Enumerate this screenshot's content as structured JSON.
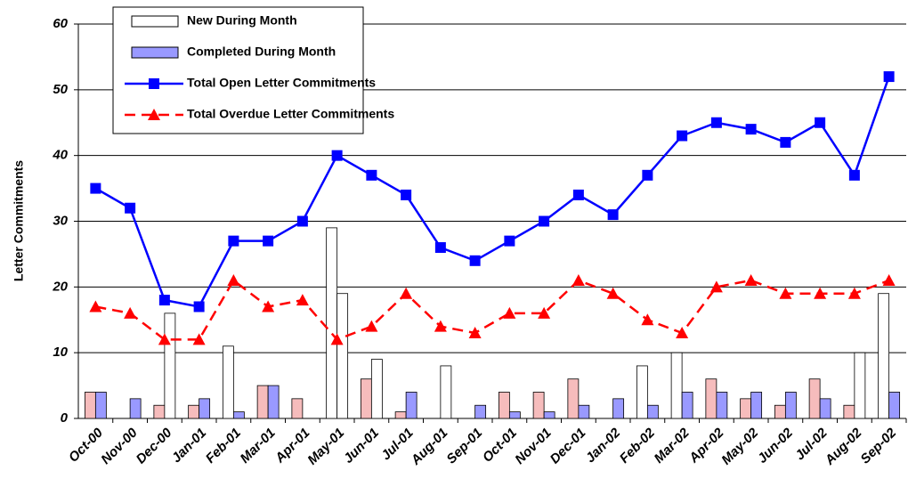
{
  "chart_data": {
    "type": "combo",
    "ylabel": "Letter Commitments",
    "categories": [
      "Oct-00",
      "Nov-00",
      "Dec-00",
      "Jan-01",
      "Feb-01",
      "Mar-01",
      "Apr-01",
      "May-01",
      "Jun-01",
      "Jul-01",
      "Aug-01",
      "Sep-01",
      "Oct-01",
      "Nov-01",
      "Dec-01",
      "Jan-02",
      "Feb-02",
      "Mar-02",
      "Apr-02",
      "May-02",
      "Jun-02",
      "Jul-02",
      "Aug-02",
      "Sep-02"
    ],
    "series": [
      {
        "name": "New During Month",
        "type": "bar",
        "color": "#ffffff",
        "colors": [
          "#f6bcbc",
          "#f6bcbc",
          "#f6bcbc",
          "#f6bcbc",
          "#ffffff",
          "#f6bcbc",
          "#f6bcbc",
          "#ffffff",
          "#f6bcbc",
          "#f6bcbc",
          "#f6bcbc",
          "#f6bcbc",
          "#f6bcbc",
          "#f6bcbc",
          "#f6bcbc",
          "#f6bcbc",
          "#ffffff",
          "#ffffff",
          "#f6bcbc",
          "#f6bcbc",
          "#f6bcbc",
          "#f6bcbc",
          "#f6bcbc",
          "#ffffff"
        ],
        "values": [
          4,
          0,
          2,
          2,
          11,
          5,
          3,
          29,
          6,
          1,
          0,
          0,
          4,
          4,
          6,
          0,
          8,
          10,
          6,
          3,
          2,
          6,
          2,
          19
        ]
      },
      {
        "name": "Completed During Month",
        "type": "bar",
        "color": "#9999ff",
        "colors": [
          "#9999ff",
          "#9999ff",
          "#ffffff",
          "#9999ff",
          "#9999ff",
          "#9999ff",
          "#9999ff",
          "#ffffff",
          "#ffffff",
          "#9999ff",
          "#ffffff",
          "#9999ff",
          "#9999ff",
          "#9999ff",
          "#9999ff",
          "#9999ff",
          "#9999ff",
          "#9999ff",
          "#9999ff",
          "#9999ff",
          "#9999ff",
          "#9999ff",
          "#ffffff",
          "#9999ff"
        ],
        "values": [
          4,
          3,
          16,
          3,
          1,
          5,
          0,
          19,
          9,
          4,
          8,
          2,
          1,
          1,
          2,
          3,
          2,
          4,
          4,
          4,
          4,
          3,
          10,
          4
        ]
      },
      {
        "name": "Total Open Letter Commitments",
        "type": "line",
        "color": "#0000ff",
        "marker": "square",
        "values": [
          35,
          32,
          18,
          17,
          27,
          27,
          30,
          40,
          37,
          34,
          26,
          24,
          27,
          30,
          34,
          31,
          37,
          43,
          45,
          44,
          42,
          45,
          37,
          52
        ]
      },
      {
        "name": "Total Overdue Letter Commitments",
        "type": "line",
        "color": "#ff0000",
        "marker": "triangle",
        "dashed": true,
        "values": [
          17,
          16,
          12,
          12,
          21,
          17,
          18,
          12,
          14,
          19,
          14,
          13,
          16,
          16,
          21,
          19,
          15,
          13,
          20,
          21,
          19,
          19,
          19,
          21
        ]
      }
    ],
    "ylim": [
      0,
      60
    ],
    "yticks": [
      0,
      10,
      20,
      30,
      40,
      50,
      60
    ],
    "grid": true
  }
}
